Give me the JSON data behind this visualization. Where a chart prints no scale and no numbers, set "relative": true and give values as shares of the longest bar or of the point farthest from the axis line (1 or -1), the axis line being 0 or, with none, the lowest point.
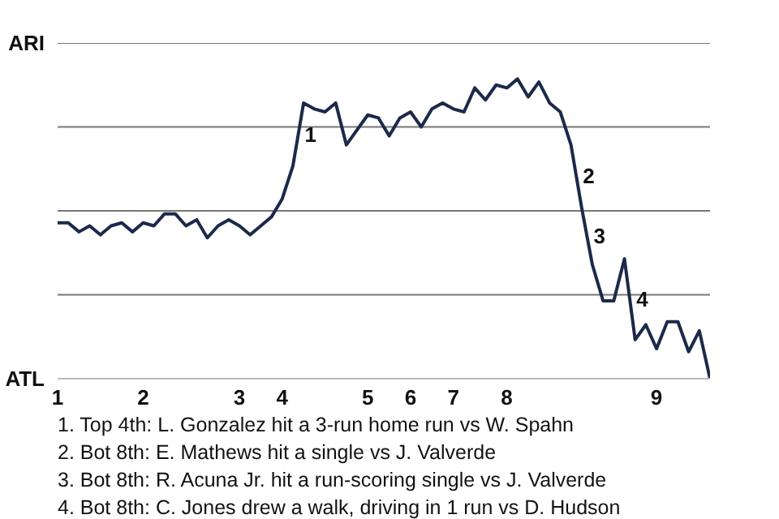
{
  "chart_data": {
    "type": "line",
    "relative": true,
    "categories": [
      "1",
      null,
      null,
      null,
      null,
      null,
      null,
      null,
      "2",
      null,
      null,
      null,
      null,
      null,
      null,
      null,
      null,
      "3",
      null,
      null,
      null,
      "4",
      null,
      null,
      null,
      null,
      null,
      null,
      null,
      "5",
      null,
      null,
      null,
      "6",
      null,
      null,
      null,
      "7",
      null,
      null,
      null,
      null,
      "8",
      null,
      null,
      null,
      null,
      null,
      null,
      null,
      null,
      null,
      null,
      null,
      null,
      null,
      "9",
      null,
      null,
      null,
      null,
      null
    ],
    "series": [
      {
        "color": "#1b2a4a",
        "values": [
          0.52,
          0.52,
          0.49,
          0.51,
          0.48,
          0.51,
          0.52,
          0.49,
          0.52,
          0.51,
          0.55,
          0.55,
          0.51,
          0.53,
          0.47,
          0.51,
          0.53,
          0.51,
          0.48,
          0.51,
          0.54,
          0.6,
          0.71,
          0.92,
          0.9,
          0.89,
          0.92,
          0.78,
          0.83,
          0.88,
          0.87,
          0.81,
          0.87,
          0.89,
          0.84,
          0.9,
          0.92,
          0.9,
          0.89,
          0.97,
          0.93,
          0.98,
          0.97,
          1,
          0.94,
          0.99,
          0.92,
          0.89,
          0.78,
          0.57,
          0.38,
          0.26,
          0.26,
          0.4,
          0.13,
          0.18,
          0.1,
          0.19,
          0.19,
          0.09,
          0.16,
          0
        ],
        "name": null
      }
    ],
    "marker": "none",
    "line_style": "solid",
    "ref_lines": [
      {
        "axis": "y",
        "value": 0.28,
        "color": "#777777"
      },
      {
        "axis": "y",
        "value": 0.56,
        "color": "#777777"
      },
      {
        "axis": "y",
        "value": 0.84,
        "color": "#777777"
      },
      {
        "axis": "y",
        "value": 1.12,
        "color": "#777777"
      }
    ],
    "annotations": [
      "ARI",
      "ATL",
      "1",
      "2",
      "3",
      "4",
      "1. Top 4th: L. Gonzalez hit a 3-run home run vs W. Spahn",
      "2. Bot 8th: E. Mathews hit a single vs J. Valverde",
      "3. Bot 8th: R. Acuna Jr. hit a run-scoring single vs J. Valverde",
      "4. Bot 8th: C. Jones drew a walk, driving in 1 run vs D. Hudson"
    ]
  }
}
